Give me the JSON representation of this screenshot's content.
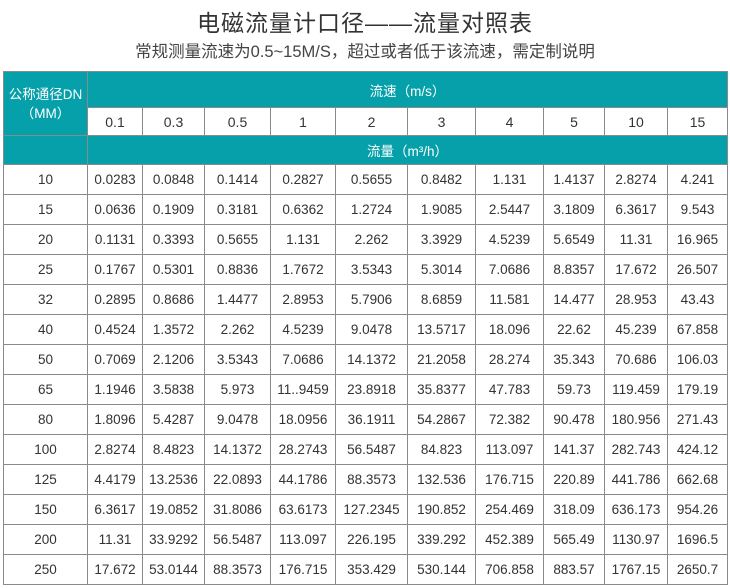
{
  "title": "电磁流量计口径——流量对照表",
  "subtitle": "常规测量流速为0.5~15M/S，超过或者低于该流速，需定制说明",
  "colors": {
    "header_bg": "#06a0aa",
    "header_text": "#ffffff",
    "border": "#8a8a8a"
  },
  "table": {
    "dn_header_line1": "公称通径DN",
    "dn_header_line2": "（MM）",
    "velocity_header": "流速（m/s）",
    "flow_header": "流量（m³/h）",
    "velocities": [
      "0.1",
      "0.3",
      "0.5",
      "1",
      "2",
      "3",
      "4",
      "5",
      "10",
      "15"
    ],
    "rows": [
      {
        "dn": "10",
        "values": [
          "0.0283",
          "0.0848",
          "0.1414",
          "0.2827",
          "0.5655",
          "0.8482",
          "1.131",
          "1.4137",
          "2.8274",
          "4.241"
        ]
      },
      {
        "dn": "15",
        "values": [
          "0.0636",
          "0.1909",
          "0.3181",
          "0.6362",
          "1.2724",
          "1.9085",
          "2.5447",
          "3.1809",
          "6.3617",
          "9.543"
        ]
      },
      {
        "dn": "20",
        "values": [
          "0.1131",
          "0.3393",
          "0.5655",
          "1.131",
          "2.262",
          "3.3929",
          "4.5239",
          "5.6549",
          "11.31",
          "16.965"
        ]
      },
      {
        "dn": "25",
        "values": [
          "0.1767",
          "0.5301",
          "0.8836",
          "1.7672",
          "3.5343",
          "5.3014",
          "7.0686",
          "8.8357",
          "17.672",
          "26.507"
        ]
      },
      {
        "dn": "32",
        "values": [
          "0.2895",
          "0.8686",
          "1.4477",
          "2.8953",
          "5.7906",
          "8.6859",
          "11.581",
          "14.477",
          "28.953",
          "43.43"
        ]
      },
      {
        "dn": "40",
        "values": [
          "0.4524",
          "1.3572",
          "2.262",
          "4.5239",
          "9.0478",
          "13.5717",
          "18.096",
          "22.62",
          "45.239",
          "67.858"
        ]
      },
      {
        "dn": "50",
        "values": [
          "0.7069",
          "2.1206",
          "3.5343",
          "7.0686",
          "14.1372",
          "21.2058",
          "28.274",
          "35.343",
          "70.686",
          "106.03"
        ]
      },
      {
        "dn": "65",
        "values": [
          "1.1946",
          "3.5838",
          "5.973",
          "11..9459",
          "23.8918",
          "35.8377",
          "47.783",
          "59.73",
          "119.459",
          "179.19"
        ]
      },
      {
        "dn": "80",
        "values": [
          "1.8096",
          "5.4287",
          "9.0478",
          "18.0956",
          "36.1911",
          "54.2867",
          "72.382",
          "90.478",
          "180.956",
          "271.43"
        ]
      },
      {
        "dn": "100",
        "values": [
          "2.8274",
          "8.4823",
          "14.1372",
          "28.2743",
          "56.5487",
          "84.823",
          "113.097",
          "141.37",
          "282.743",
          "424.12"
        ]
      },
      {
        "dn": "125",
        "values": [
          "4.4179",
          "13.2536",
          "22.0893",
          "44.1786",
          "88.3573",
          "132.536",
          "176.715",
          "220.89",
          "441.786",
          "662.68"
        ]
      },
      {
        "dn": "150",
        "values": [
          "6.3617",
          "19.0852",
          "31.8086",
          "63.6173",
          "127.2345",
          "190.852",
          "254.469",
          "318.09",
          "636.173",
          "954.26"
        ]
      },
      {
        "dn": "200",
        "values": [
          "11.31",
          "33.9292",
          "56.5487",
          "113.097",
          "226.195",
          "339.292",
          "452.389",
          "565.49",
          "1130.97",
          "1696.5"
        ]
      },
      {
        "dn": "250",
        "values": [
          "17.672",
          "53.0144",
          "88.3573",
          "176.715",
          "353.429",
          "530.144",
          "706.858",
          "883.57",
          "1767.15",
          "2650.7"
        ]
      }
    ]
  }
}
